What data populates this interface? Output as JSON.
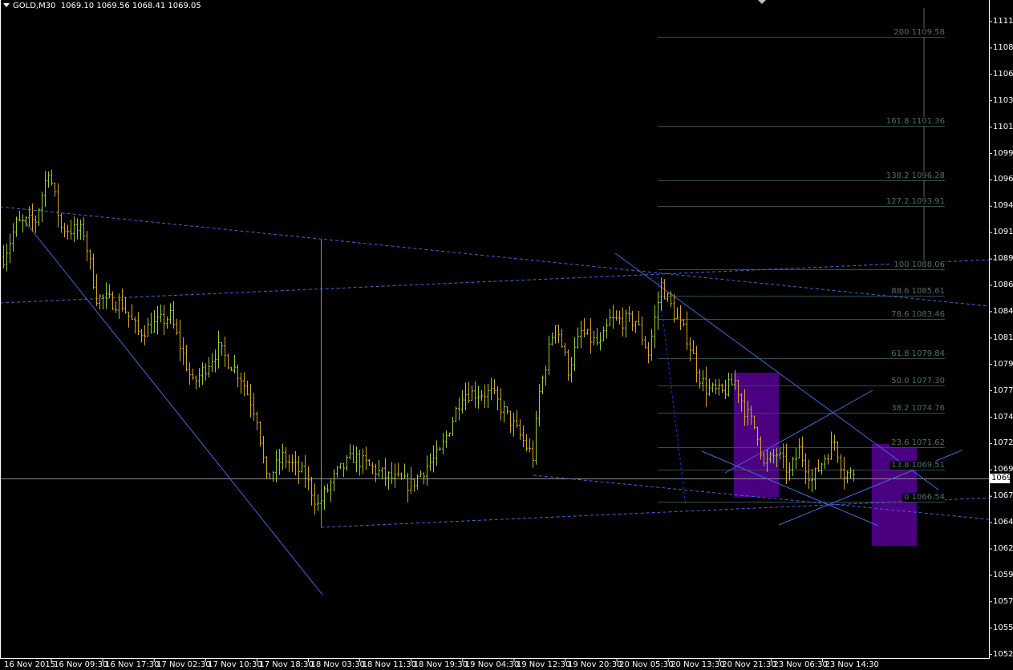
{
  "header": {
    "symbol": "GOLD,M30",
    "ohlc": "1069.10 1069.56 1068.41 1069.05"
  },
  "current_price_label": "1069",
  "colors": {
    "background": "#000000",
    "bar_up": "#9acd32",
    "bar_down": "#daa520",
    "trendline": "#4169e1",
    "fibo": "#2f4f4f",
    "rectangle": "#4b0082"
  },
  "chart_data": {
    "type": "ohlc",
    "symbol": "GOLD",
    "timeframe": "M30",
    "ylim": [
      1052,
      1111
    ],
    "y_ticks": [
      "1111",
      "1108",
      "1106",
      "1103",
      "1101",
      "1099",
      "1096",
      "1094",
      "1091",
      "1089",
      "1086",
      "1084",
      "1081",
      "1079",
      "1077",
      "1074",
      "1072",
      "1069",
      "1067",
      "1064",
      "1062",
      "1059",
      "1057",
      "1055",
      "1052"
    ],
    "x_ticks": [
      "16 Nov 2015",
      "16 Nov 09:30",
      "16 Nov 17:30",
      "17 Nov 02:30",
      "17 Nov 10:30",
      "17 Nov 18:30",
      "18 Nov 03:30",
      "18 Nov 11:30",
      "18 Nov 19:30",
      "19 Nov 04:30",
      "19 Nov 12:30",
      "19 Nov 20:30",
      "20 Nov 05:30",
      "20 Nov 13:30",
      "20 Nov 21:30",
      "23 Nov 06:30",
      "23 Nov 14:30"
    ],
    "price_path": [
      [
        0,
        1089.2
      ],
      [
        4,
        1092.2
      ],
      [
        10,
        1092.6
      ],
      [
        14,
        1097.4
      ],
      [
        18,
        1091.9
      ],
      [
        25,
        1091.5
      ],
      [
        29,
        1085.5
      ],
      [
        37,
        1084.8
      ],
      [
        42,
        1082.2
      ],
      [
        52,
        1083.7
      ],
      [
        59,
        1077.4
      ],
      [
        67,
        1080.7
      ],
      [
        74,
        1078.1
      ],
      [
        79,
        1074.4
      ],
      [
        82,
        1068.5
      ],
      [
        87,
        1070.7
      ],
      [
        94,
        1068.9
      ],
      [
        98,
        1066.2
      ],
      [
        104,
        1069.2
      ],
      [
        109,
        1070.7
      ],
      [
        119,
        1068.9
      ],
      [
        127,
        1068.1
      ],
      [
        132,
        1069.9
      ],
      [
        136,
        1071.0
      ],
      [
        143,
        1076.6
      ],
      [
        152,
        1076.6
      ],
      [
        159,
        1073.6
      ],
      [
        165,
        1070.7
      ],
      [
        167,
        1076.6
      ],
      [
        172,
        1083.3
      ],
      [
        176,
        1078.8
      ],
      [
        180,
        1082.2
      ],
      [
        186,
        1081.0
      ],
      [
        189,
        1083.3
      ],
      [
        197,
        1083.3
      ],
      [
        201,
        1080.3
      ],
      [
        205,
        1086.6
      ],
      [
        209,
        1084.0
      ],
      [
        213,
        1081.8
      ],
      [
        217,
        1078.1
      ],
      [
        219,
        1077.0
      ],
      [
        224,
        1076.6
      ],
      [
        228,
        1077.7
      ],
      [
        231,
        1075.1
      ],
      [
        235,
        1072.9
      ],
      [
        237,
        1069.9
      ],
      [
        241,
        1071.0
      ],
      [
        245,
        1069.2
      ],
      [
        248,
        1071.4
      ],
      [
        252,
        1068.5
      ],
      [
        256,
        1070.7
      ],
      [
        259,
        1072.1
      ],
      [
        262,
        1069.2
      ],
      [
        265,
        1069.05
      ]
    ],
    "last": {
      "open": 1069.1,
      "high": 1069.56,
      "low": 1068.41,
      "close": 1069.05
    }
  },
  "fibonacci": {
    "levels": [
      {
        "label": "200 1109.58",
        "price": 1109.58
      },
      {
        "label": "161.8 1101.36",
        "price": 1101.36
      },
      {
        "label": "138.2 1096.28",
        "price": 1096.28
      },
      {
        "label": "127.2 1093.91",
        "price": 1093.91
      },
      {
        "label": "100 1088.06",
        "price": 1088.06
      },
      {
        "label": "88.6 1085.61",
        "price": 1085.61
      },
      {
        "label": "78.6 1083.46",
        "price": 1083.46
      },
      {
        "label": "61.8 1079.84",
        "price": 1079.84
      },
      {
        "label": "50.0 1077.30",
        "price": 1077.3
      },
      {
        "label": "38.2 1074.76",
        "price": 1074.76
      },
      {
        "label": "23.6 1071.62",
        "price": 1071.62
      },
      {
        "label": "13.8 1069.51",
        "price": 1069.51
      },
      {
        "label": "0 1066.54",
        "price": 1066.54
      }
    ]
  }
}
